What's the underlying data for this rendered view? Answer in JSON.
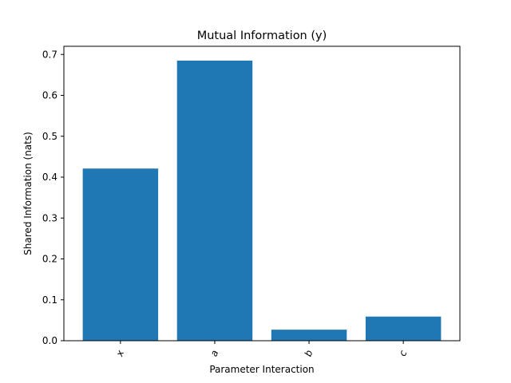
{
  "chart_data": {
    "type": "bar",
    "title": "Mutual Information (y)",
    "xlabel": "Parameter Interaction",
    "ylabel": "Shared Information (nats)",
    "categories": [
      "x",
      "a",
      "b",
      "c"
    ],
    "values": [
      0.421,
      0.685,
      0.027,
      0.059
    ],
    "ylim": [
      0,
      0.72
    ],
    "yticks": [
      0.0,
      0.1,
      0.2,
      0.3,
      0.4,
      0.5,
      0.6,
      0.7
    ],
    "ytick_labels": [
      "0.0",
      "0.1",
      "0.2",
      "0.3",
      "0.4",
      "0.5",
      "0.6",
      "0.7"
    ],
    "bar_color": "#1f77b4",
    "grid": false,
    "xtick_rotation": -70
  }
}
